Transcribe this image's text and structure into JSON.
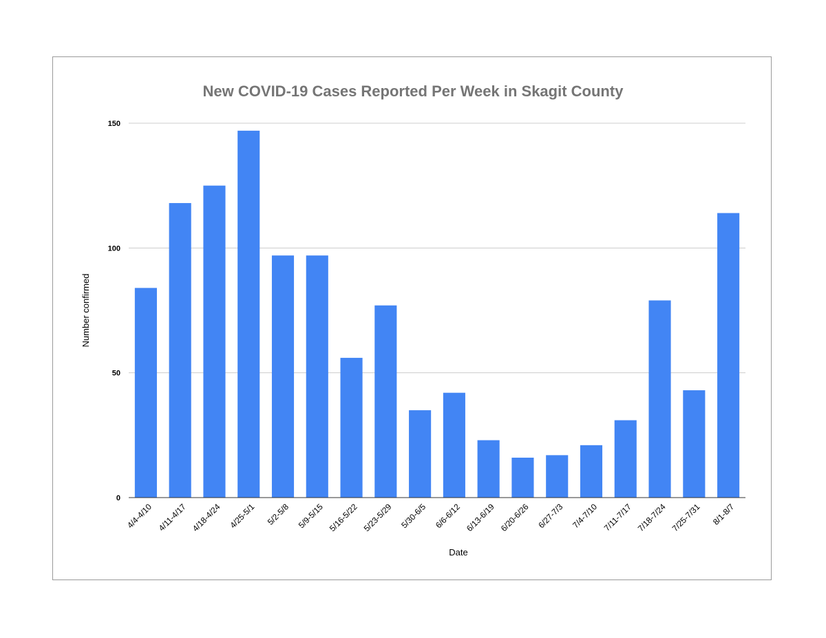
{
  "chart_data": {
    "type": "bar",
    "title": "New COVID-19 Cases Reported Per Week in Skagit County",
    "xlabel": "Date",
    "ylabel": "Number confirmed",
    "ylim": [
      0,
      150
    ],
    "yticks": [
      0,
      50,
      100,
      150
    ],
    "grid": true,
    "legend": "none",
    "bar_color": "#4285f4",
    "gridline_color": "#cccccc",
    "title_color": "#757575",
    "categories": [
      "4/4-4/10",
      "4/11-4/17",
      "4/18-4/24",
      "4/25-5/1",
      "5/2-5/8",
      "5/9-5/15",
      "5/16-5/22",
      "5/23-5/29",
      "5/30-6/5",
      "6/6-6/12",
      "6/13-6/19",
      "6/20-6/26",
      "6/27-7/3",
      "7/4-7/10",
      "7/11-7/17",
      "7/18-7/24",
      "7/25-7/31",
      "8/1-8/7"
    ],
    "values": [
      84,
      118,
      125,
      147,
      97,
      97,
      56,
      77,
      35,
      42,
      23,
      16,
      17,
      21,
      31,
      79,
      43,
      114
    ]
  }
}
